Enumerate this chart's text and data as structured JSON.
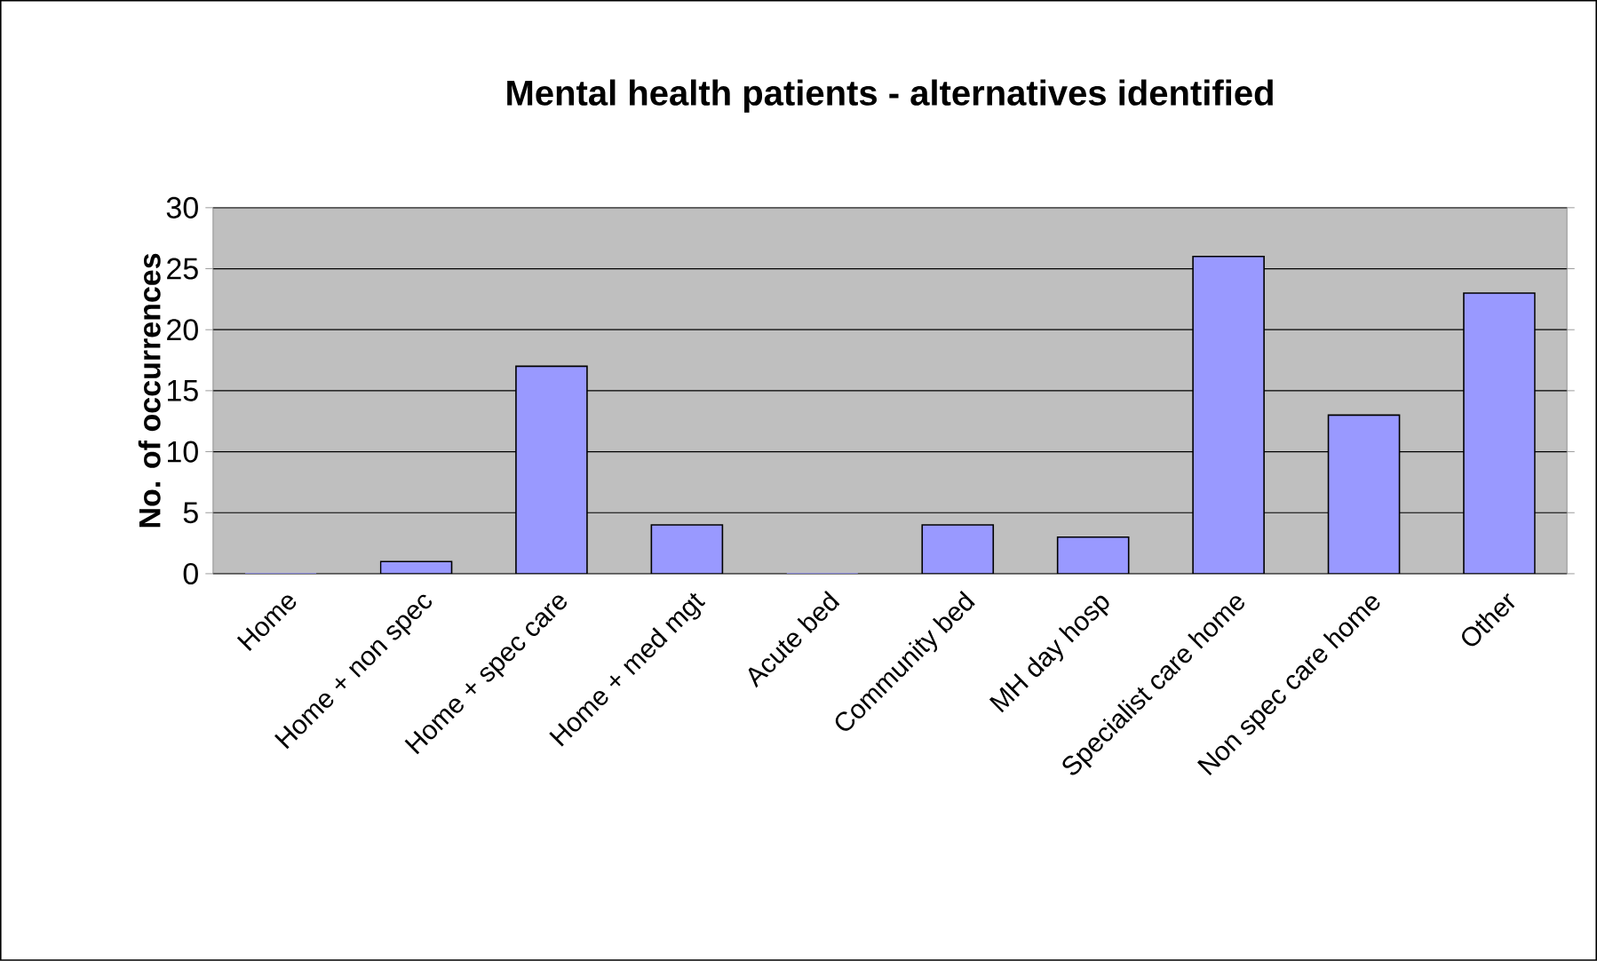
{
  "chart_data": {
    "type": "bar",
    "title": "Mental health patients - alternatives identified",
    "ylabel": "No. of occurrences",
    "categories": [
      "Home",
      "Home + non spec",
      "Home + spec care",
      "Home + med mgt",
      "Acute bed",
      "Community bed",
      "MH day hosp",
      "Specialist care home",
      "Non spec care home",
      "Other"
    ],
    "values": [
      0,
      1,
      17,
      4,
      0,
      4,
      3,
      26,
      13,
      23
    ],
    "color": "#9999ff",
    "ylim": [
      0,
      30
    ],
    "yticks": [
      0,
      5,
      10,
      15,
      20,
      25,
      30
    ],
    "grid": "y"
  }
}
